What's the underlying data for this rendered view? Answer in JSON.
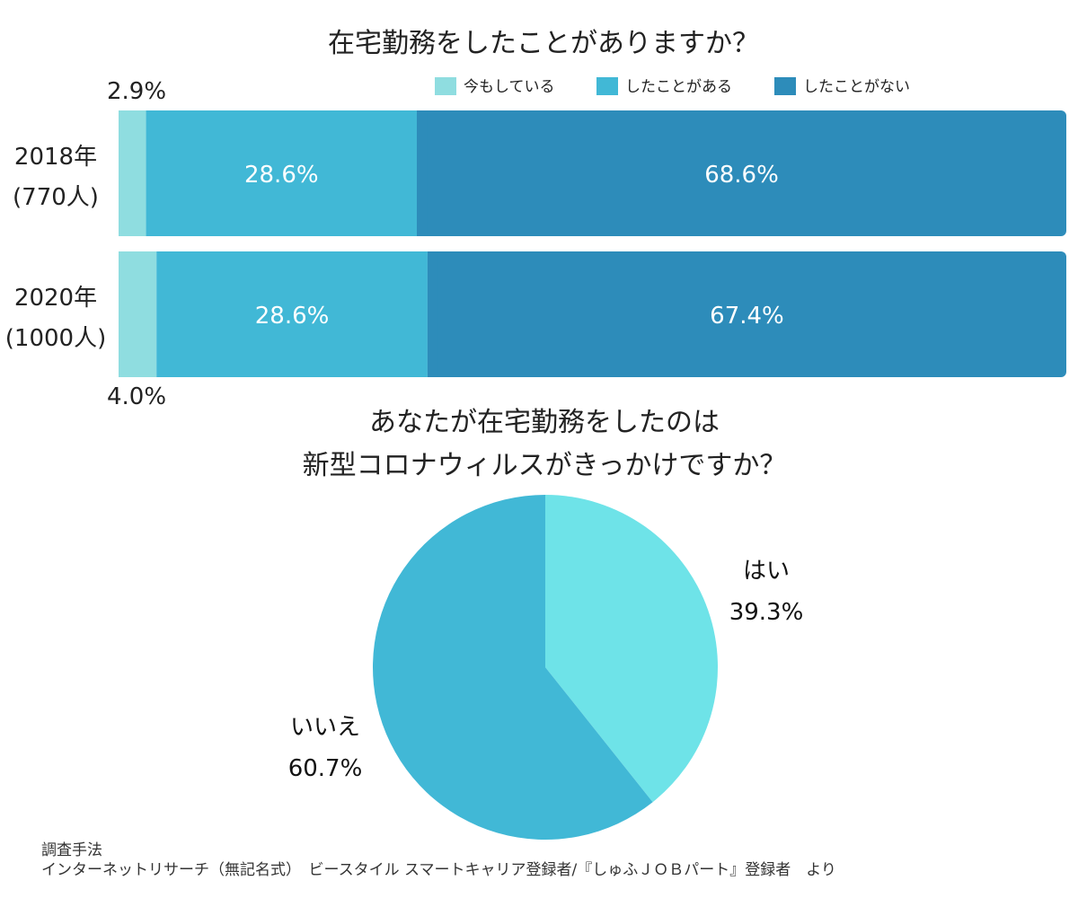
{
  "colors": {
    "light": "#8fdde0",
    "mid": "#41b8d6",
    "dark": "#2d8cba",
    "pie_yes": "#6ee3e8",
    "pie_no": "#41b8d6"
  },
  "chart_data": [
    {
      "type": "bar",
      "orientation": "horizontal-stacked",
      "title": "在宅勤務をしたことがありますか？",
      "legend": [
        "今もしている",
        "したことがある",
        "したことがない"
      ],
      "legend_position": "top-right",
      "categories": [
        {
          "year": "2018年",
          "count": "(770人)"
        },
        {
          "year": "2020年",
          "count": "(1000人)"
        }
      ],
      "series": [
        {
          "name": "今もしている",
          "values": [
            2.9,
            4.0
          ],
          "labels": [
            "2.9%",
            "4.0%"
          ]
        },
        {
          "name": "したことがある",
          "values": [
            28.6,
            28.6
          ],
          "labels": [
            "28.6%",
            "28.6%"
          ]
        },
        {
          "name": "したことがない",
          "values": [
            68.6,
            67.4
          ],
          "labels": [
            "68.6%",
            "67.4%"
          ]
        }
      ],
      "xlim": [
        0,
        100
      ],
      "grid": false
    },
    {
      "type": "pie",
      "title_lines": [
        "あなたが在宅勤務をしたのは",
        "新型コロナウィルスがきっかけですか？"
      ],
      "slices": [
        {
          "name": "はい",
          "value": 39.3,
          "label": "39.3%"
        },
        {
          "name": "いいえ",
          "value": 60.7,
          "label": "60.7%"
        }
      ]
    }
  ],
  "footer": {
    "line1": "調査手法",
    "line2": "インターネットリサーチ（無記名式）　ビースタイル スマートキャリア登録者/『しゅふＪＯＢパート』登録者　より"
  }
}
